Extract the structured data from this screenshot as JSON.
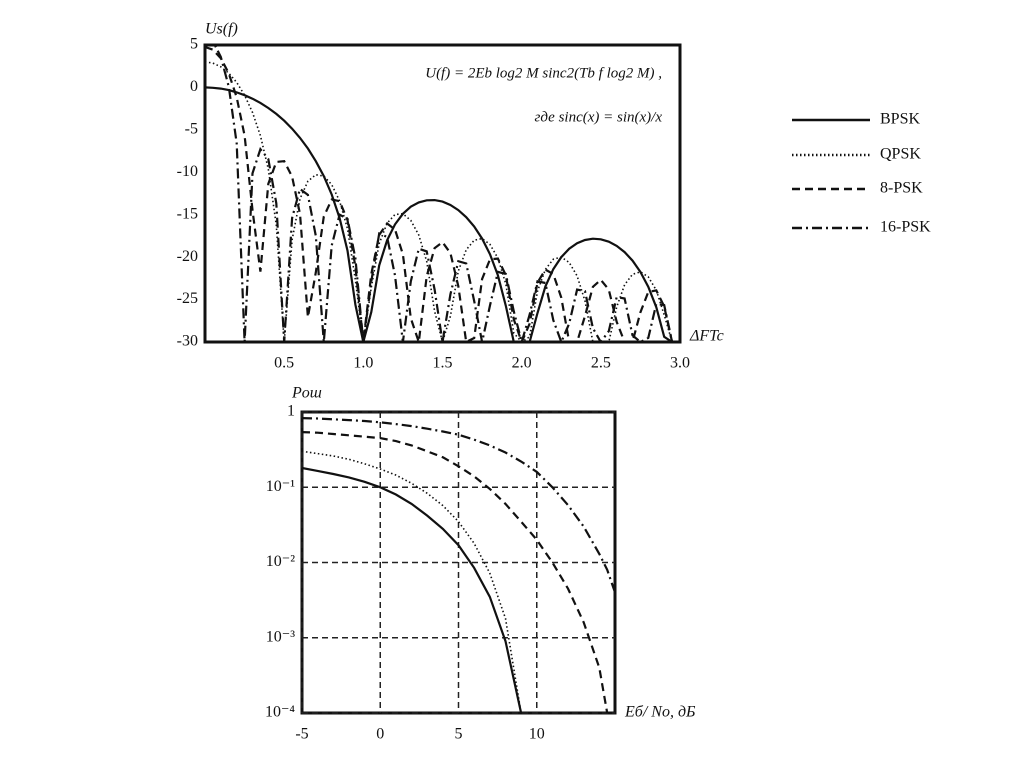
{
  "chart_data": [
    {
      "type": "line",
      "ylabel": "Us(f)",
      "xlabel": "ΔFTc",
      "annotations": [
        "U(f) = 2Eb log2 M sinc2(Tb f log2 M) ,",
        "где sinc(x) = sin(x)/x"
      ],
      "x": [
        0,
        0.05,
        0.1,
        0.15,
        0.2,
        0.25,
        0.3,
        0.35,
        0.4,
        0.45,
        0.5,
        0.55,
        0.6,
        0.65,
        0.7,
        0.75,
        0.8,
        0.85,
        0.9,
        0.95,
        1,
        1.05,
        1.1,
        1.15,
        1.2,
        1.25,
        1.3,
        1.35,
        1.4,
        1.45,
        1.5,
        1.55,
        1.6,
        1.65,
        1.7,
        1.75,
        1.8,
        1.85,
        1.9,
        1.95,
        2,
        2.05,
        2.1,
        2.15,
        2.2,
        2.25,
        2.3,
        2.35,
        2.4,
        2.45,
        2.5,
        2.55,
        2.6,
        2.65,
        2.7,
        2.75,
        2.8,
        2.85,
        2.9,
        2.95,
        3
      ],
      "series": [
        {
          "name": "BPSK",
          "color": "#111111",
          "line_style": "solid",
          "values": [
            0,
            -0.04,
            -0.14,
            -0.32,
            -0.58,
            -0.91,
            -1.33,
            -1.82,
            -2.42,
            -3.12,
            -3.92,
            -4.86,
            -5.95,
            -7.2,
            -8.69,
            -10.45,
            -12.62,
            -15.39,
            -19.23,
            -25.61,
            -30,
            -26.47,
            -20.97,
            -18.01,
            -16.14,
            -14.89,
            -14.06,
            -13.55,
            -13.3,
            -13.28,
            -13.46,
            -13.86,
            -14.46,
            -15.29,
            -16.39,
            -17.81,
            -19.67,
            -22.14,
            -25.72,
            -30,
            -30,
            -30,
            -26.58,
            -23.45,
            -21.41,
            -19.99,
            -19.01,
            -18.36,
            -17.98,
            -17.83,
            -17.9,
            -18.18,
            -18.68,
            -19.4,
            -20.41,
            -21.74,
            -23.5,
            -25.9,
            -29.39,
            -30,
            -30
          ]
        },
        {
          "name": "QPSK",
          "color": "#111111",
          "line_style": "dotted",
          "values": [
            3.01,
            2.87,
            2.43,
            1.68,
            0.59,
            -0.91,
            -2.94,
            -5.68,
            -9.61,
            -16.22,
            -30,
            -17.96,
            -13.13,
            -11.05,
            -10.29,
            -10.45,
            -11.45,
            -13.38,
            -16.66,
            -22.71,
            -30,
            -23.57,
            -18.4,
            -16,
            -14.97,
            -14.89,
            -15.67,
            -17.4,
            -20.49,
            -26.38,
            -30,
            -26.96,
            -21.65,
            -19.14,
            -18,
            -17.82,
            -18.5,
            -20.13,
            -23.15,
            -28.95,
            -30,
            -29.39,
            -24.01,
            -21.44,
            -20.24,
            -20,
            -20.63,
            -22.21,
            -25.17,
            -30,
            -30,
            -30,
            -25.87,
            -23.26,
            -22.02,
            -21.74,
            -22.33,
            -23.89,
            -26.82,
            -30,
            -30
          ]
        },
        {
          "name": "8-PSK",
          "color": "#111111",
          "line_style": "dashed",
          "values": [
            4.77,
            4.45,
            3.44,
            1.65,
            -1.18,
            -5.68,
            -14.46,
            -21.7,
            -11.37,
            -8.78,
            -8.69,
            -10.52,
            -14.9,
            -27.08,
            -21.81,
            -15.22,
            -13.21,
            -13.41,
            -15.64,
            -21.13,
            -30,
            -22,
            -17.38,
            -16.04,
            -16.74,
            -19.66,
            -27.19,
            -30,
            -22.25,
            -18.94,
            -18.24,
            -19.52,
            -23.41,
            -30,
            -29.53,
            -22.58,
            -20.26,
            -20.17,
            -22.13,
            -27.33,
            -30,
            -27.86,
            -23,
            -21.47,
            -22,
            -24.77,
            -30,
            -30,
            -26.94,
            -23.5,
            -22.67,
            -23.84,
            -27.63,
            -30,
            -30,
            -26.51,
            -24.1,
            -23.92,
            -25.8,
            -30,
            -30
          ]
        },
        {
          "name": "16-PSK",
          "color": "#111111",
          "line_style": "dashdot",
          "values": [
            6.02,
            5.44,
            3.6,
            0.07,
            -6.6,
            -30,
            -10.12,
            -7.28,
            -8.44,
            -13.65,
            -30,
            -15.39,
            -11.96,
            -12.66,
            -17.48,
            -30,
            -18.64,
            -14.99,
            -15.49,
            -20.14,
            -30,
            -22.86,
            -17.23,
            -17.62,
            -22.16,
            -30,
            -22.86,
            -19.01,
            -19.32,
            -23.81,
            -30,
            -24.39,
            -20.48,
            -20.75,
            -25.18,
            -30,
            -25.69,
            -21.74,
            -21.98,
            -26.38,
            -30,
            -26.78,
            -22.85,
            -23.05,
            -27.43,
            -30,
            -27.82,
            -23.82,
            -24.01,
            -28.37,
            -30,
            -28.71,
            -24.7,
            -24.87,
            -29.21,
            -30,
            -29.52,
            -25.5,
            -25.65,
            -29.98,
            -30
          ]
        }
      ],
      "xlim": [
        0,
        3
      ],
      "xticks": [
        0.5,
        {
          "value": 1,
          "label": "1.0"
        },
        1.5,
        {
          "value": 2,
          "label": "2.0"
        },
        2.5,
        {
          "value": 3,
          "label": "3.0"
        }
      ],
      "ylim": [
        -30,
        5
      ],
      "yticks": [
        5,
        0,
        -5,
        -10,
        -15,
        -20,
        -25,
        -30
      ],
      "grid": false,
      "legend": "right"
    },
    {
      "type": "line",
      "ylabel": "Pош",
      "xlabel": "Eб/ Nо, дБ",
      "x": [
        -5,
        -4,
        -3,
        -2,
        -1,
        0,
        1,
        2,
        3,
        4,
        5,
        6,
        7,
        8,
        9,
        10,
        11,
        12,
        13,
        14,
        14.5,
        15
      ],
      "series": [
        {
          "color": "#111111",
          "line_style": "solid",
          "values": [
            0.18,
            0.165,
            0.15,
            0.135,
            0.118,
            0.1,
            0.08,
            0.06,
            0.042,
            0.028,
            0.017,
            0.0085,
            0.0035,
            0.0009,
            0.0001,
            null,
            null,
            null,
            null,
            null,
            null,
            null
          ]
        },
        {
          "color": "#111111",
          "line_style": "dotted",
          "values": [
            0.3,
            0.28,
            0.26,
            0.235,
            0.205,
            0.175,
            0.145,
            0.113,
            0.083,
            0.057,
            0.035,
            0.018,
            0.0072,
            0.0018,
            0.0001,
            null,
            null,
            null,
            null,
            null,
            null,
            null
          ]
        },
        {
          "color": "#111111",
          "line_style": "dashed",
          "values": [
            0.54,
            0.53,
            0.51,
            0.49,
            0.47,
            0.45,
            0.41,
            0.36,
            0.3,
            0.25,
            0.19,
            0.14,
            0.095,
            0.06,
            0.035,
            0.02,
            0.01,
            0.0045,
            0.0016,
            0.0004,
            0.0001,
            null
          ]
        },
        {
          "color": "#111111",
          "line_style": "dashdot",
          "values": [
            0.83,
            0.82,
            0.8,
            0.78,
            0.76,
            0.73,
            0.69,
            0.65,
            0.6,
            0.55,
            0.5,
            0.43,
            0.36,
            0.29,
            0.22,
            0.16,
            0.1,
            0.058,
            0.03,
            0.013,
            0.008,
            0.004
          ]
        }
      ],
      "xlim": [
        -5,
        15
      ],
      "xticks": [
        -5,
        0,
        5,
        10
      ],
      "ylim": [
        0.0001,
        1
      ],
      "yticks": [
        1,
        {
          "value": 0.1,
          "label": "10⁻¹"
        },
        {
          "value": 0.01,
          "label": "10⁻²"
        },
        {
          "value": 0.001,
          "label": "10⁻³"
        },
        {
          "value": 0.0001,
          "label": "10⁻⁴"
        }
      ],
      "ylog": true,
      "grid": true
    }
  ]
}
